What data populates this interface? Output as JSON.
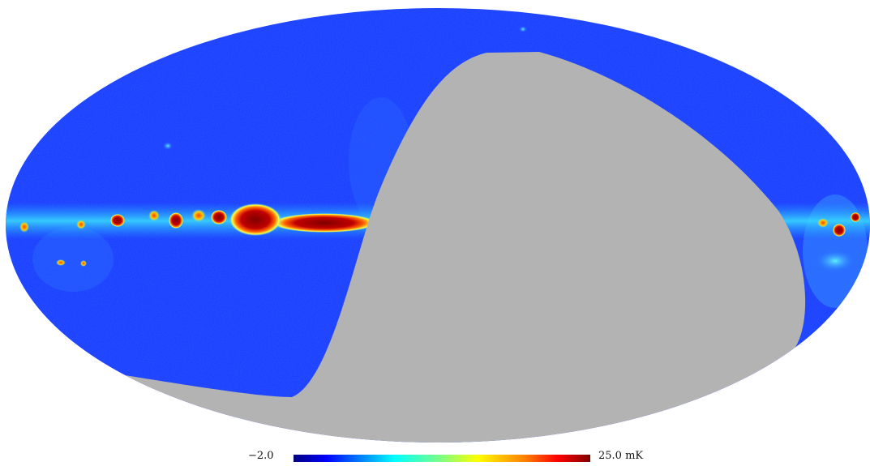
{
  "colorbar": {
    "min_label": "−2.0",
    "max_label": "25.0 mK",
    "colormap": "jet"
  },
  "map": {
    "projection": "mollweide",
    "masked_region_color": "#b3b3b3",
    "background_color": "#1438ff"
  },
  "colors": {
    "jet_stops": [
      "#00007f",
      "#0000ff",
      "#0080ff",
      "#00ffff",
      "#80ff80",
      "#ffff00",
      "#ff8000",
      "#ff0000",
      "#7f0000"
    ]
  }
}
